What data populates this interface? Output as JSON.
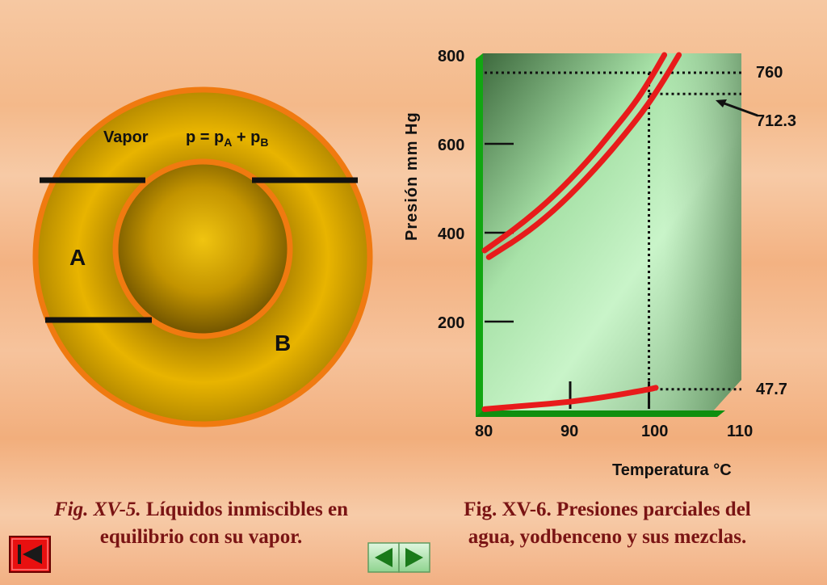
{
  "fig5": {
    "vapor_label": "Vapor",
    "eq_p": "p = p",
    "sub_a": "A",
    "eq_plus": " + p",
    "sub_b": "B",
    "label_a": "A",
    "label_b": "B",
    "caption_prefix": "Fig. XV-5.",
    "caption_line1": "  Líquidos inmiscibles en",
    "caption_line2": "equilibrio con su vapor."
  },
  "fig6": {
    "caption_line1": "Fig. XV-6. Presiones parciales del",
    "caption_line2": "agua, yodbenceno y sus mezclas."
  },
  "nav": {
    "first_icon": "skip-to-first-icon",
    "prev_icon": "previous-arrow-icon",
    "next_icon": "next-arrow-icon"
  },
  "colors": {
    "curve": "#e81b1b",
    "axis": "#10a010",
    "ring_outer": "#f07a10",
    "gold": "#e8b400"
  },
  "chart_data": {
    "type": "line",
    "xlabel": "Temperatura °C",
    "ylabel": "Presión mm Hg",
    "xlim": [
      80,
      110
    ],
    "ylim": [
      0,
      800
    ],
    "x_ticks": [
      "80",
      "90",
      "100",
      "110"
    ],
    "y_ticks": [
      "200",
      "400",
      "600",
      "800"
    ],
    "annotations": [
      {
        "text": "760",
        "y": 760
      },
      {
        "text": "712.3",
        "y": 712.3
      },
      {
        "text": "47.7",
        "y": 47.7
      }
    ],
    "vertical_markers_x": [
      90,
      99.2
    ],
    "series": [
      {
        "x": [
          80,
          85,
          90,
          95,
          99.2,
          100
        ],
        "y": [
          3,
          11,
          19,
          33,
          47.7,
          51
        ]
      },
      {
        "x": [
          80,
          84,
          88,
          92,
          95,
          97.5,
          99.2,
          101
        ],
        "y": [
          360,
          415,
          480,
          560,
          630,
          690,
          740,
          800
        ]
      },
      {
        "x": [
          80.5,
          85,
          89,
          93,
          96,
          98.8,
          101,
          102.7
        ],
        "y": [
          345,
          400,
          465,
          545,
          612,
          680,
          745,
          800
        ]
      }
    ]
  }
}
